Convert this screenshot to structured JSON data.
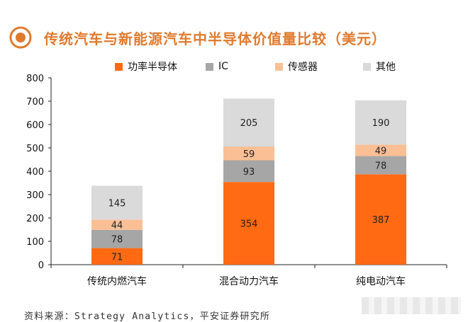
{
  "title": "传统汽车与新能源汽车中半导体价值量比较（美元）",
  "source": "资料来源：Strategy Analytics，平安证券研究所",
  "colors": {
    "title": "#e07a2e",
    "series": [
      "#ff6a13",
      "#a6a6a6",
      "#fbbf95",
      "#dadada"
    ]
  },
  "chart_data": {
    "type": "bar",
    "stacked": true,
    "categories": [
      "传统内燃汽车",
      "混合动力汽车",
      "纯电动汽车"
    ],
    "series": [
      {
        "name": "功率半导体",
        "values": [
          71,
          354,
          387
        ]
      },
      {
        "name": "IC",
        "values": [
          78,
          93,
          78
        ]
      },
      {
        "name": "传感器",
        "values": [
          44,
          59,
          49
        ]
      },
      {
        "name": "其他",
        "values": [
          145,
          205,
          190
        ]
      }
    ],
    "ylim": [
      0,
      800
    ],
    "yticks": [
      "0",
      "100",
      "200",
      "300",
      "400",
      "500",
      "600",
      "700",
      "800"
    ],
    "grid": false,
    "legend": "top"
  }
}
